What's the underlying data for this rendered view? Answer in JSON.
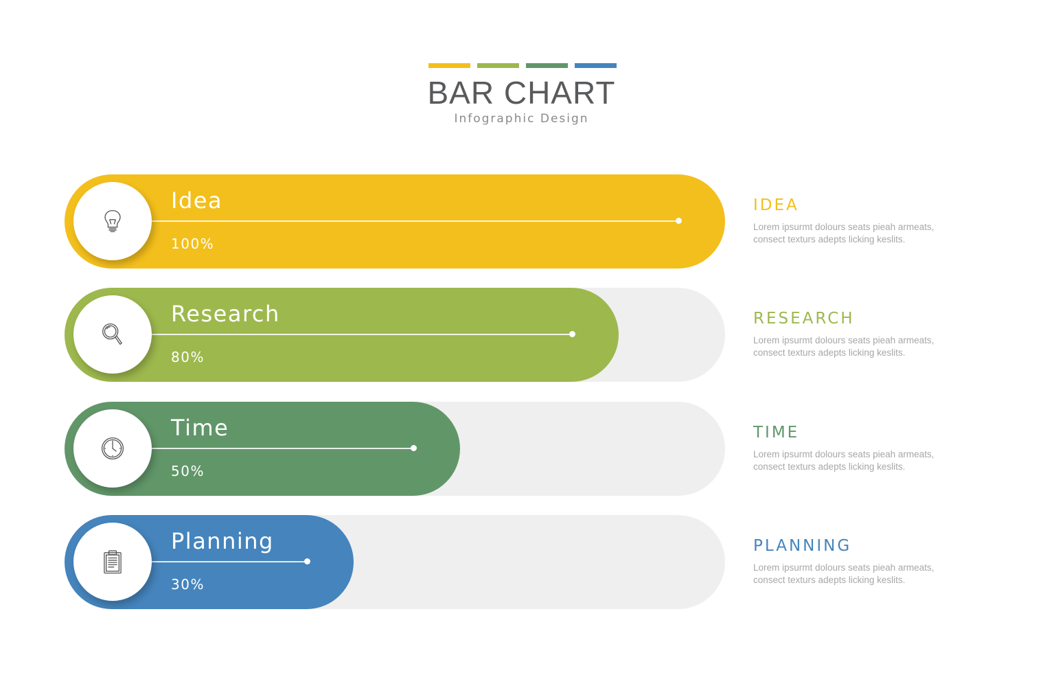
{
  "header": {
    "title": "BAR CHART",
    "subtitle": "Infographic Design",
    "swatch_colors": [
      "#f3bf1c",
      "#9db84d",
      "#619669",
      "#4584bc"
    ]
  },
  "chart_data": {
    "type": "bar",
    "orientation": "horizontal",
    "categories": [
      "Idea",
      "Research",
      "Time",
      "Planning"
    ],
    "values": [
      100,
      80,
      50,
      30
    ],
    "value_labels": [
      "100%",
      "80%",
      "50%",
      "30%"
    ],
    "unit": "%",
    "xlim": [
      0,
      100
    ],
    "title": "BAR CHART",
    "subtitle": "Infographic Design",
    "colors": [
      "#f3bf1c",
      "#9db84d",
      "#619669",
      "#4584bc"
    ],
    "grid": false
  },
  "rows": [
    {
      "label": "Idea",
      "value_label": "100%",
      "value": 100,
      "color": "#f3bf1c",
      "icon": "lightbulb-icon",
      "side_title": "IDEA",
      "side_text": "Lorem ipsurmt dolours seats pieah armeats, consect texturs adepts licking keslits."
    },
    {
      "label": "Research",
      "value_label": "80%",
      "value": 80,
      "color": "#9db84d",
      "icon": "magnifier-icon",
      "side_title": "RESEARCH",
      "side_text": "Lorem ipsurmt dolours seats pieah armeats, consect texturs adepts licking keslits."
    },
    {
      "label": "Time",
      "value_label": "50%",
      "value": 50,
      "color": "#619669",
      "icon": "clock-icon",
      "side_title": "TIME",
      "side_text": "Lorem ipsurmt dolours seats pieah armeats, consect texturs adepts licking keslits."
    },
    {
      "label": "Planning",
      "value_label": "30%",
      "value": 30,
      "color": "#4584bc",
      "icon": "clipboard-icon",
      "side_title": "PLANNING",
      "side_text": "Lorem ipsurmt dolours seats pieah armeats, consect texturs adepts licking keslits."
    }
  ],
  "track_color": "#efefef"
}
